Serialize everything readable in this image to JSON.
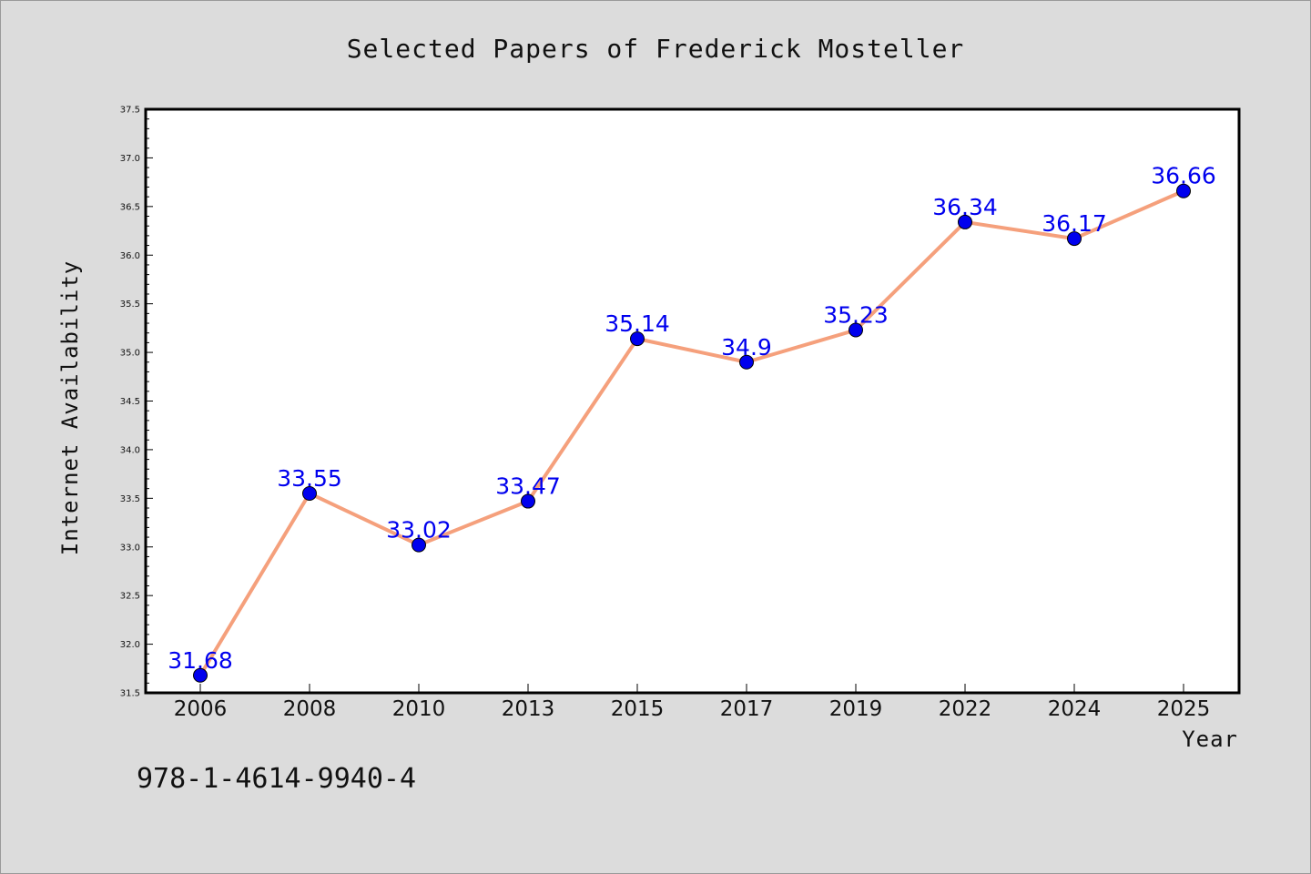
{
  "chart_data": {
    "type": "line",
    "title": "Selected Papers of Frederick Mosteller",
    "xlabel": "Year",
    "ylabel": "Internet Availability",
    "categories": [
      "2006",
      "2008",
      "2010",
      "2013",
      "2015",
      "2017",
      "2019",
      "2022",
      "2024",
      "2025"
    ],
    "series": [
      {
        "values": [
          31.68,
          33.55,
          33.02,
          33.47,
          35.14,
          34.9,
          35.23,
          36.34,
          36.17,
          36.66
        ],
        "labels": [
          "31.68",
          "33.55",
          "33.02",
          "33.47",
          "35.14",
          "34.9",
          "35.23",
          "36.34",
          "36.17",
          "36.66"
        ]
      }
    ],
    "ylim": [
      31.5,
      37.5
    ],
    "yticks": [
      "31.5",
      "32.0",
      "32.5",
      "33.0",
      "33.5",
      "34.0",
      "34.5",
      "35.0",
      "35.5",
      "36.0",
      "36.5",
      "37.0",
      "37.5"
    ],
    "grid": false,
    "line_color": "#f5a07c",
    "marker_color": "#0000ee",
    "label_color": "#0000ee"
  },
  "footnote": "978-1-4614-9940-4"
}
